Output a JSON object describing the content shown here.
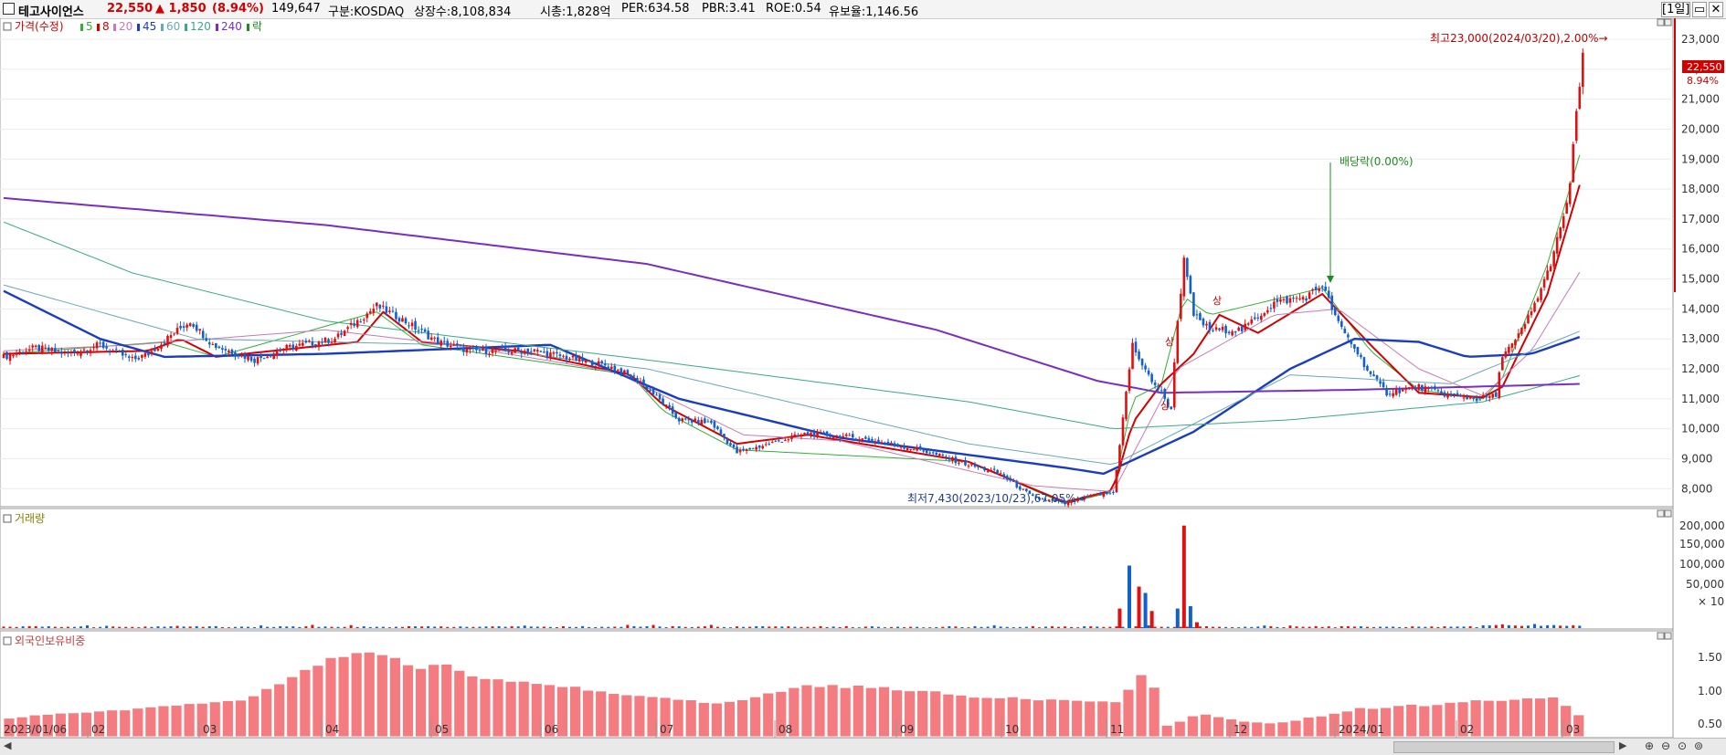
{
  "header": {
    "name": "테고사이언스",
    "price": "22,550",
    "change": "▲ 1,850",
    "change_pct": "(8.94%)",
    "volume": "149,647",
    "market": "구분:KOSDAQ",
    "listed": "상장수:8,108,834",
    "mktcap": "시총:1,828억",
    "per": "PER:634.58",
    "pbr": "PBR:3.41",
    "roe": "ROE:0.54",
    "float": "유보율:1,146.56",
    "period_button": "[1일]",
    "price_color": "#d40000",
    "change_color": "#d40000"
  },
  "legend": {
    "price_label": "가격(수정)",
    "items": [
      {
        "label": "5",
        "color": "#34b034"
      },
      {
        "label": "8",
        "color": "#d40000"
      },
      {
        "label": "20",
        "color": "#c87ab8"
      },
      {
        "label": "45",
        "color": "#1a3cc0"
      },
      {
        "label": "60",
        "color": "#6aa8b8"
      },
      {
        "label": "120",
        "color": "#3aa888"
      },
      {
        "label": "240",
        "color": "#7a2ec0"
      },
      {
        "label": "락",
        "color": "#208a20"
      }
    ]
  },
  "volume_panel": {
    "title": "거래량",
    "axis_labels": [
      "200,000",
      "150,000",
      "100,000",
      "50,000",
      "× 10"
    ]
  },
  "foreign_panel": {
    "title": "외국인보유비중",
    "axis_labels": [
      "1.50",
      "1.00",
      "0.50"
    ]
  },
  "x_labels": [
    "2023/01/06",
    "02",
    "03",
    "04",
    "05",
    "06",
    "07",
    "08",
    "09",
    "10",
    "11",
    "12",
    "2024/01",
    "02",
    "03"
  ],
  "annotations": {
    "high": "최고23,000(2024/03/20),2.00%→",
    "low": "최저7,430(2023/10/23),67.05%→",
    "dividend": "배당락(0.00%)",
    "limit_up": "상",
    "last_price": "22,550",
    "last_pct": "8.94%"
  },
  "chart_data": {
    "type": "candlestick",
    "price_axis": {
      "ylim": [
        7400,
        23700
      ],
      "ticks": [
        8000,
        9000,
        10000,
        11000,
        12000,
        13000,
        14000,
        15000,
        16000,
        17000,
        18000,
        19000,
        20000,
        21000,
        22000,
        23000
      ]
    },
    "price_path": [
      [
        0,
        12400
      ],
      [
        10,
        12700
      ],
      [
        20,
        12500
      ],
      [
        30,
        12800
      ],
      [
        40,
        12300
      ],
      [
        45,
        12500
      ],
      [
        53,
        13200
      ],
      [
        58,
        13600
      ],
      [
        65,
        12800
      ],
      [
        78,
        12300
      ],
      [
        88,
        12700
      ],
      [
        103,
        13000
      ],
      [
        116,
        14100
      ],
      [
        123,
        13700
      ],
      [
        135,
        12900
      ],
      [
        145,
        12600
      ],
      [
        165,
        12600
      ],
      [
        188,
        12100
      ],
      [
        198,
        11600
      ],
      [
        210,
        10300
      ],
      [
        220,
        10200
      ],
      [
        228,
        9200
      ],
      [
        238,
        9500
      ],
      [
        250,
        9850
      ],
      [
        265,
        9700
      ],
      [
        285,
        9300
      ],
      [
        300,
        8800
      ],
      [
        310,
        8500
      ],
      [
        320,
        7700
      ],
      [
        330,
        7500
      ],
      [
        340,
        7800
      ],
      [
        345,
        7850
      ],
      [
        347,
        9500
      ],
      [
        349,
        11200
      ],
      [
        351,
        12800
      ],
      [
        355,
        11900
      ],
      [
        360,
        11200
      ],
      [
        363,
        10600
      ],
      [
        364,
        12300
      ],
      [
        365,
        13600
      ],
      [
        367,
        15600
      ],
      [
        370,
        13800
      ],
      [
        375,
        13300
      ],
      [
        385,
        13300
      ],
      [
        395,
        14200
      ],
      [
        405,
        14400
      ],
      [
        410,
        14800
      ],
      [
        415,
        13500
      ],
      [
        420,
        12700
      ],
      [
        425,
        11800
      ],
      [
        430,
        11200
      ],
      [
        440,
        11400
      ],
      [
        450,
        11100
      ],
      [
        458,
        11000
      ],
      [
        464,
        11100
      ],
      [
        466,
        12500
      ],
      [
        470,
        12900
      ],
      [
        475,
        13900
      ],
      [
        480,
        15200
      ],
      [
        485,
        17000
      ],
      [
        487,
        18200
      ],
      [
        489,
        20500
      ],
      [
        491,
        22550
      ]
    ],
    "ma_series": [
      {
        "name": "240",
        "color": "#7a2ec0",
        "width": 2,
        "values": [
          [
            0,
            17700
          ],
          [
            100,
            16800
          ],
          [
            200,
            15500
          ],
          [
            290,
            13300
          ],
          [
            340,
            11600
          ],
          [
            360,
            11200
          ],
          [
            420,
            11300
          ],
          [
            491,
            11500
          ]
        ]
      },
      {
        "name": "120",
        "color": "#3aa888",
        "width": 1,
        "values": [
          [
            0,
            16900
          ],
          [
            40,
            15200
          ],
          [
            100,
            13600
          ],
          [
            200,
            12300
          ],
          [
            300,
            10900
          ],
          [
            345,
            10000
          ],
          [
            400,
            10300
          ],
          [
            460,
            10900
          ],
          [
            491,
            11800
          ]
        ]
      },
      {
        "name": "60",
        "color": "#6aa8b8",
        "width": 1,
        "values": [
          [
            0,
            14800
          ],
          [
            60,
            13000
          ],
          [
            140,
            12800
          ],
          [
            200,
            12000
          ],
          [
            300,
            9500
          ],
          [
            345,
            8800
          ],
          [
            400,
            11800
          ],
          [
            450,
            11500
          ],
          [
            491,
            13300
          ]
        ]
      },
      {
        "name": "45",
        "color": "#1a3cc0",
        "width": 2.4,
        "values": [
          [
            0,
            14600
          ],
          [
            30,
            13000
          ],
          [
            50,
            12400
          ],
          [
            100,
            12500
          ],
          [
            170,
            12800
          ],
          [
            210,
            11000
          ],
          [
            260,
            9700
          ],
          [
            330,
            8700
          ],
          [
            342,
            8500
          ],
          [
            370,
            9900
          ],
          [
            400,
            12000
          ],
          [
            420,
            13000
          ],
          [
            440,
            12900
          ],
          [
            455,
            12400
          ],
          [
            475,
            12500
          ],
          [
            491,
            13100
          ]
        ]
      },
      {
        "name": "20",
        "color": "#c87ab8",
        "width": 1,
        "values": [
          [
            0,
            12600
          ],
          [
            40,
            12800
          ],
          [
            100,
            13300
          ],
          [
            140,
            12800
          ],
          [
            190,
            11900
          ],
          [
            230,
            9800
          ],
          [
            260,
            9600
          ],
          [
            320,
            8100
          ],
          [
            345,
            7900
          ],
          [
            365,
            12000
          ],
          [
            395,
            13800
          ],
          [
            415,
            14000
          ],
          [
            440,
            12000
          ],
          [
            460,
            11100
          ],
          [
            475,
            12600
          ],
          [
            491,
            15400
          ]
        ]
      },
      {
        "name": "8",
        "color": "#d40000",
        "width": 2,
        "values": [
          [
            0,
            12500
          ],
          [
            45,
            12600
          ],
          [
            55,
            13000
          ],
          [
            66,
            12400
          ],
          [
            110,
            12900
          ],
          [
            118,
            13900
          ],
          [
            130,
            12900
          ],
          [
            160,
            12600
          ],
          [
            195,
            11800
          ],
          [
            205,
            10800
          ],
          [
            228,
            9500
          ],
          [
            250,
            9800
          ],
          [
            300,
            8900
          ],
          [
            330,
            7550
          ],
          [
            345,
            7950
          ],
          [
            351,
            10200
          ],
          [
            360,
            11500
          ],
          [
            370,
            12500
          ],
          [
            378,
            13800
          ],
          [
            390,
            13200
          ],
          [
            410,
            14500
          ],
          [
            425,
            12800
          ],
          [
            440,
            11200
          ],
          [
            460,
            11050
          ],
          [
            466,
            11400
          ],
          [
            480,
            14500
          ],
          [
            491,
            18500
          ]
        ]
      },
      {
        "name": "5",
        "color": "#34b034",
        "width": 1,
        "values": [
          [
            0,
            12500
          ],
          [
            50,
            12900
          ],
          [
            66,
            12400
          ],
          [
            116,
            13900
          ],
          [
            130,
            12800
          ],
          [
            195,
            11800
          ],
          [
            205,
            10600
          ],
          [
            228,
            9300
          ],
          [
            300,
            8900
          ],
          [
            330,
            7500
          ],
          [
            345,
            7900
          ],
          [
            351,
            11000
          ],
          [
            360,
            11500
          ],
          [
            367,
            14400
          ],
          [
            375,
            13800
          ],
          [
            410,
            14700
          ],
          [
            425,
            12600
          ],
          [
            440,
            11300
          ],
          [
            460,
            11000
          ],
          [
            466,
            11700
          ],
          [
            480,
            15500
          ],
          [
            491,
            19500
          ]
        ]
      }
    ],
    "volume": {
      "ylim": [
        0,
        230000
      ],
      "peaks": [
        [
          347,
          40000
        ],
        [
          350,
          128000
        ],
        [
          353,
          85000
        ],
        [
          355,
          72000
        ],
        [
          357,
          35000
        ],
        [
          365,
          40000
        ],
        [
          367,
          210000
        ],
        [
          369,
          45000
        ],
        [
          371,
          12000
        ]
      ]
    },
    "foreign_ratio": {
      "ylim": [
        0.3,
        1.95
      ],
      "path": [
        [
          0,
          0.62
        ],
        [
          30,
          0.74
        ],
        [
          66,
          0.88
        ],
        [
          75,
          0.96
        ],
        [
          80,
          1.1
        ],
        [
          100,
          1.6
        ],
        [
          110,
          1.78
        ],
        [
          115,
          1.72
        ],
        [
          128,
          1.45
        ],
        [
          135,
          1.55
        ],
        [
          145,
          1.3
        ],
        [
          180,
          1.1
        ],
        [
          220,
          0.85
        ],
        [
          250,
          1.18
        ],
        [
          280,
          1.1
        ],
        [
          300,
          0.98
        ],
        [
          330,
          0.92
        ],
        [
          345,
          0.9
        ],
        [
          352,
          1.38
        ],
        [
          357,
          1.1
        ],
        [
          360,
          0.5
        ],
        [
          370,
          0.68
        ],
        [
          390,
          0.52
        ],
        [
          400,
          0.58
        ],
        [
          420,
          0.78
        ],
        [
          440,
          0.84
        ],
        [
          460,
          0.92
        ],
        [
          480,
          0.95
        ],
        [
          485,
          0.78
        ],
        [
          491,
          0.55
        ]
      ]
    }
  }
}
